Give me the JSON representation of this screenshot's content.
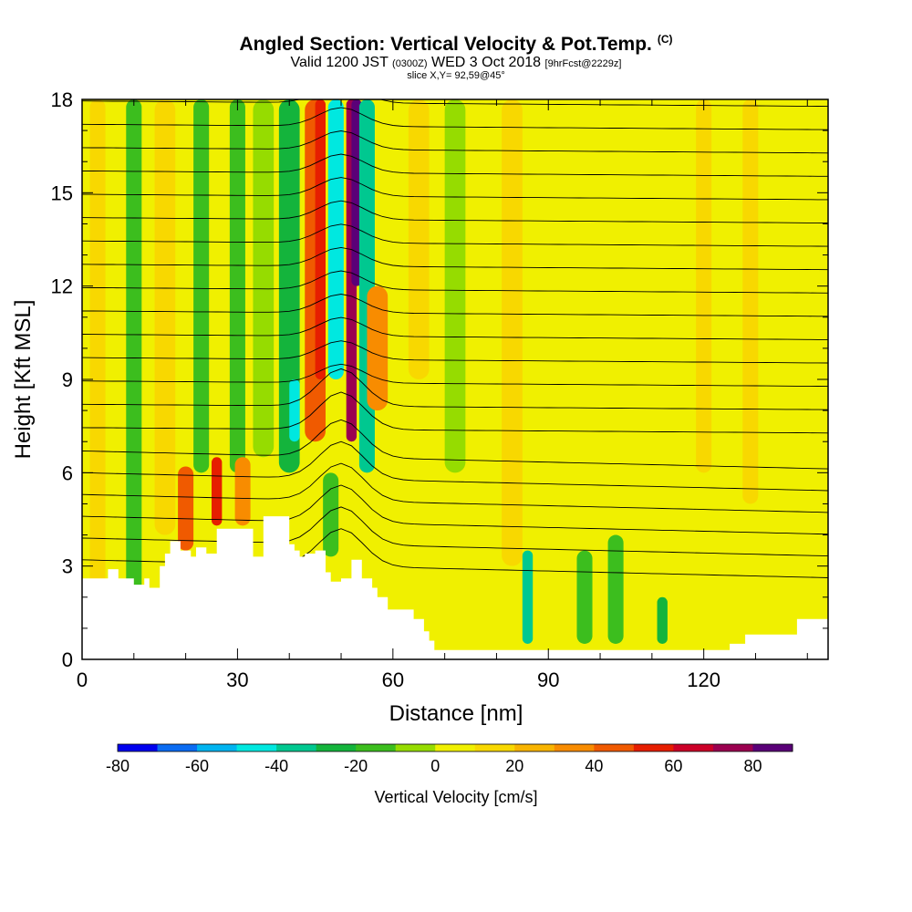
{
  "header": {
    "title": "Angled Section: Vertical Velocity & Pot.Temp.",
    "title_suffix": "(C)",
    "valid_prefix": "Valid 1200 JST",
    "valid_utc": "(0300Z)",
    "valid_date": "WED 3 Oct 2018",
    "forecast": "[9hrFcst@2229z]",
    "slice": "slice X,Y= 92,59@45°"
  },
  "chart_data": {
    "type": "heatmap",
    "xlabel": "Distance [nm]",
    "ylabel": "Height [Kft MSL]",
    "xlim": [
      0,
      144
    ],
    "ylim": [
      0,
      18
    ],
    "x_ticks": [
      0,
      30,
      60,
      90,
      120
    ],
    "y_ticks": [
      0,
      3,
      6,
      9,
      12,
      15,
      18
    ],
    "colorbar": {
      "label": "Vertical Velocity [cm/s]",
      "min": -80,
      "max": 90,
      "step": 10,
      "tick_labels": [
        -80,
        -60,
        -40,
        -20,
        0,
        20,
        40,
        60,
        80
      ],
      "colors": [
        "#0000ee",
        "#0b6cf2",
        "#00b4f0",
        "#00e8e0",
        "#00c890",
        "#14b43c",
        "#3cbe1e",
        "#96dc00",
        "#f0f000",
        "#f8d800",
        "#f8b400",
        "#f88c00",
        "#f05a00",
        "#e61e00",
        "#cc0028",
        "#9b0050",
        "#5a0078"
      ]
    },
    "terrain": {
      "x": [
        0,
        5,
        7,
        10,
        12,
        13,
        15,
        16,
        17,
        19,
        21,
        22,
        24,
        26,
        30,
        33,
        35,
        37,
        40,
        41,
        42,
        43,
        45,
        47,
        48,
        50,
        52,
        54,
        56,
        57,
        59,
        60,
        64,
        66,
        67,
        68,
        70,
        80,
        90,
        100,
        115,
        120,
        125,
        128,
        130,
        135,
        138,
        144
      ],
      "height": [
        2.6,
        2.9,
        2.6,
        2.4,
        2.6,
        2.3,
        3.0,
        3.4,
        3.8,
        3.5,
        3.3,
        3.6,
        3.4,
        4.2,
        4.2,
        3.3,
        4.6,
        4.6,
        3.7,
        3.5,
        3.3,
        3.4,
        3.5,
        2.8,
        2.5,
        2.6,
        3.2,
        2.6,
        2.3,
        2.0,
        1.6,
        1.6,
        1.3,
        0.9,
        0.6,
        0.3,
        0.3,
        0.3,
        0.3,
        0.3,
        0.3,
        0.3,
        0.5,
        0.8,
        0.8,
        0.8,
        1.3,
        1.3
      ]
    },
    "updrafts": [
      {
        "x": 3,
        "w": 3,
        "base": 0,
        "top": 18,
        "value": 10
      },
      {
        "x": 10,
        "w": 3,
        "base": 2,
        "top": 18,
        "value": -20
      },
      {
        "x": 16,
        "w": 4,
        "base": 4,
        "top": 18,
        "value": 10
      },
      {
        "x": 20,
        "w": 3,
        "base": 3.5,
        "top": 6.2,
        "value": 40
      },
      {
        "x": 23,
        "w": 3,
        "base": 6,
        "top": 18,
        "value": -20
      },
      {
        "x": 26,
        "w": 2,
        "base": 4.3,
        "top": 6.5,
        "value": 50
      },
      {
        "x": 30,
        "w": 3,
        "base": 6,
        "top": 18,
        "value": -20
      },
      {
        "x": 31,
        "w": 3,
        "base": 4.3,
        "top": 6.5,
        "value": 30
      },
      {
        "x": 35,
        "w": 4,
        "base": 6.5,
        "top": 18,
        "value": -10
      },
      {
        "x": 40,
        "w": 4,
        "base": 6,
        "top": 18,
        "value": -30
      },
      {
        "x": 41,
        "w": 2,
        "base": 7,
        "top": 9,
        "value": -50
      },
      {
        "x": 45,
        "w": 4,
        "base": 7,
        "top": 18,
        "value": 40
      },
      {
        "x": 46,
        "w": 2,
        "base": 9,
        "top": 18,
        "value": 55
      },
      {
        "x": 48,
        "w": 3,
        "base": 3.3,
        "top": 6,
        "value": -20
      },
      {
        "x": 49,
        "w": 3,
        "base": 9,
        "top": 18,
        "value": -50
      },
      {
        "x": 52,
        "w": 2,
        "base": 7,
        "top": 18,
        "value": 70
      },
      {
        "x": 53,
        "w": 2,
        "base": 12,
        "top": 18,
        "value": 90
      },
      {
        "x": 55,
        "w": 3,
        "base": 6,
        "top": 18,
        "value": -40
      },
      {
        "x": 57,
        "w": 4,
        "base": 8,
        "top": 12,
        "value": 30
      },
      {
        "x": 65,
        "w": 4,
        "base": 9,
        "top": 18,
        "value": 10
      },
      {
        "x": 72,
        "w": 4,
        "base": 6,
        "top": 18,
        "value": -10
      },
      {
        "x": 83,
        "w": 4,
        "base": 3,
        "top": 18,
        "value": 10
      },
      {
        "x": 86,
        "w": 2,
        "base": 0.5,
        "top": 3.5,
        "value": -40
      },
      {
        "x": 95,
        "w": 4,
        "base": 4,
        "top": 18,
        "value": 5
      },
      {
        "x": 97,
        "w": 3,
        "base": 0.5,
        "top": 3.5,
        "value": -20
      },
      {
        "x": 103,
        "w": 3,
        "base": 0.5,
        "top": 4,
        "value": -20
      },
      {
        "x": 112,
        "w": 2,
        "base": 0.5,
        "top": 2,
        "value": -30
      },
      {
        "x": 120,
        "w": 3,
        "base": 6,
        "top": 18,
        "value": 10
      },
      {
        "x": 129,
        "w": 3,
        "base": 5,
        "top": 18,
        "value": 10
      },
      {
        "x": 139,
        "w": 3,
        "base": 3,
        "top": 18,
        "value": 5
      }
    ]
  }
}
